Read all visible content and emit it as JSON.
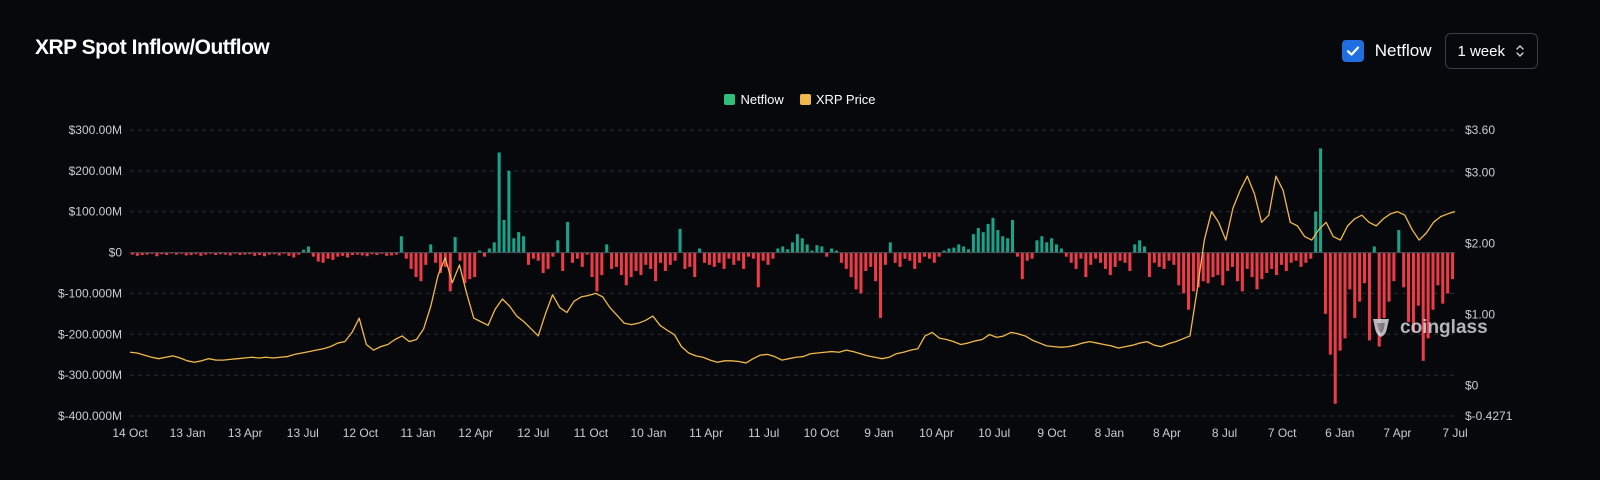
{
  "header": {
    "title": "XRP Spot Inflow/Outflow",
    "netflow_toggle": {
      "label": "Netflow",
      "checked": true
    },
    "period_select": {
      "value": "1 week"
    }
  },
  "watermark": "coinglass",
  "colors": {
    "netflow_positive": "#16a58a",
    "netflow_negative": "#ee3b48",
    "price_line": "#f0b84a",
    "legend_netflow": "#2fbf7a",
    "legend_price": "#f0b84a",
    "checkbox": "#1f6fe0",
    "grid": "#2a2d35"
  },
  "chart_data": {
    "type": "bar",
    "title": "XRP Spot Inflow/Outflow",
    "legend": [
      "Netflow",
      "XRP Price"
    ],
    "legend_position": "top-center",
    "grid": true,
    "x_tick_labels": [
      "14 Oct",
      "13 Jan",
      "13 Apr",
      "13 Jul",
      "12 Oct",
      "11 Jan",
      "12 Apr",
      "12 Jul",
      "11 Oct",
      "10 Jan",
      "11 Apr",
      "11 Jul",
      "10 Oct",
      "9 Jan",
      "10 Apr",
      "10 Jul",
      "9 Oct",
      "8 Jan",
      "8 Apr",
      "8 Jul",
      "7 Oct",
      "6 Jan",
      "7 Apr",
      "7 Jul"
    ],
    "left_axis": {
      "tick_labels": [
        "$300.00M",
        "$200.00M",
        "$100.00M",
        "$0",
        "$-100.000M",
        "$-200.000M",
        "$-300.000M",
        "$-400.000M"
      ],
      "ylim": [
        -400,
        300
      ],
      "unit": "USD millions"
    },
    "right_axis": {
      "tick_labels": [
        "$3.60",
        "$3.00",
        "$2.00",
        "$1.00",
        "$0",
        "$-0.4271"
      ],
      "ylim": [
        -0.4271,
        3.6
      ],
      "unit": "USD"
    },
    "series": [
      {
        "name": "Netflow",
        "type": "bar",
        "axis": "left",
        "values": [
          -5,
          -8,
          -6,
          -5,
          -3,
          -9,
          -4,
          -6,
          -2,
          -5,
          -3,
          -7,
          -6,
          -4,
          -8,
          -5,
          -3,
          -6,
          -4,
          -5,
          -7,
          -3,
          -6,
          -5,
          -4,
          -8,
          -6,
          -9,
          -5,
          -4,
          -7,
          -3,
          -8,
          -12,
          -5,
          7,
          15,
          -10,
          -22,
          -25,
          -15,
          -18,
          -10,
          -8,
          -12,
          -6,
          -5,
          -7,
          -9,
          -4,
          -6,
          -3,
          -8,
          -7,
          -5,
          40,
          -15,
          -40,
          -60,
          -70,
          -30,
          20,
          -25,
          -50,
          -35,
          -95,
          38,
          -20,
          -75,
          -65,
          -60,
          5,
          -10,
          10,
          25,
          245,
          80,
          200,
          35,
          50,
          40,
          -30,
          -15,
          -20,
          -50,
          -40,
          -10,
          30,
          -45,
          75,
          -25,
          -15,
          -35,
          -5,
          -60,
          -95,
          -55,
          20,
          -40,
          -35,
          -55,
          -80,
          -60,
          -45,
          -55,
          -30,
          -40,
          -70,
          -25,
          -45,
          -30,
          -20,
          58,
          -40,
          -35,
          -60,
          10,
          -25,
          -30,
          -35,
          -25,
          -40,
          -15,
          -30,
          -20,
          -40,
          -10,
          -15,
          -85,
          -20,
          -30,
          -15,
          10,
          15,
          8,
          25,
          45,
          35,
          20,
          5,
          18,
          15,
          -10,
          10,
          5,
          -25,
          -40,
          -60,
          -90,
          -100,
          -45,
          -35,
          -70,
          -160,
          -30,
          25,
          -25,
          -35,
          -15,
          -20,
          -40,
          -25,
          -10,
          -15,
          -25,
          -10,
          5,
          10,
          12,
          20,
          15,
          8,
          45,
          60,
          50,
          70,
          85,
          55,
          40,
          35,
          80,
          -10,
          -65,
          -20,
          -15,
          30,
          40,
          25,
          35,
          20,
          10,
          -10,
          -25,
          -40,
          -15,
          -60,
          -30,
          -15,
          -25,
          -40,
          -55,
          -35,
          -20,
          -25,
          -45,
          20,
          30,
          15,
          -60,
          -25,
          -35,
          -40,
          -20,
          -30,
          -80,
          -100,
          -140,
          -95,
          -85,
          -70,
          -75,
          -60,
          -55,
          -80,
          -45,
          -35,
          -70,
          -95,
          -40,
          -60,
          -90,
          -65,
          -50,
          -40,
          -55,
          -30,
          -45,
          -25,
          -20,
          -35,
          -25,
          -15,
          100,
          255,
          -150,
          -250,
          -370,
          -240,
          -210,
          -90,
          -160,
          -120,
          -75,
          -215,
          15,
          -230,
          -160,
          -120,
          -70,
          55,
          -85,
          -170,
          -195,
          -130,
          -265,
          -210,
          -140,
          -80,
          -125,
          -100,
          -65
        ]
      },
      {
        "name": "XRP Price",
        "type": "line",
        "axis": "right",
        "values": [
          0.47,
          0.46,
          0.43,
          0.4,
          0.38,
          0.4,
          0.42,
          0.39,
          0.35,
          0.33,
          0.35,
          0.38,
          0.36,
          0.36,
          0.37,
          0.38,
          0.39,
          0.4,
          0.39,
          0.4,
          0.39,
          0.4,
          0.41,
          0.44,
          0.46,
          0.48,
          0.5,
          0.52,
          0.55,
          0.6,
          0.62,
          0.75,
          0.95,
          0.58,
          0.5,
          0.55,
          0.58,
          0.65,
          0.7,
          0.62,
          0.65,
          0.8,
          1.12,
          1.55,
          1.8,
          1.45,
          1.7,
          1.3,
          0.95,
          0.9,
          0.85,
          1.08,
          1.22,
          1.12,
          0.98,
          0.9,
          0.8,
          0.7,
          1.01,
          1.28,
          1.1,
          1.03,
          1.19,
          1.25,
          1.27,
          1.3,
          1.25,
          1.1,
          0.99,
          0.88,
          0.86,
          0.88,
          0.92,
          0.98,
          0.85,
          0.78,
          0.72,
          0.55,
          0.46,
          0.42,
          0.4,
          0.36,
          0.33,
          0.35,
          0.35,
          0.34,
          0.32,
          0.38,
          0.43,
          0.44,
          0.41,
          0.36,
          0.38,
          0.4,
          0.41,
          0.45,
          0.46,
          0.47,
          0.48,
          0.47,
          0.5,
          0.48,
          0.45,
          0.42,
          0.4,
          0.38,
          0.4,
          0.45,
          0.47,
          0.5,
          0.52,
          0.7,
          0.75,
          0.67,
          0.65,
          0.62,
          0.58,
          0.6,
          0.63,
          0.65,
          0.72,
          0.68,
          0.7,
          0.75,
          0.73,
          0.7,
          0.64,
          0.6,
          0.56,
          0.55,
          0.54,
          0.55,
          0.57,
          0.6,
          0.62,
          0.6,
          0.58,
          0.56,
          0.53,
          0.55,
          0.57,
          0.6,
          0.62,
          0.57,
          0.55,
          0.59,
          0.62,
          0.66,
          0.7,
          1.35,
          2.05,
          2.45,
          2.3,
          2.05,
          2.5,
          2.75,
          2.95,
          2.7,
          2.3,
          2.4,
          2.95,
          2.75,
          2.3,
          2.25,
          2.1,
          2.05,
          2.2,
          2.3,
          2.1,
          2.05,
          2.25,
          2.35,
          2.4,
          2.3,
          2.25,
          2.35,
          2.42,
          2.45,
          2.4,
          2.2,
          2.05,
          2.15,
          2.3,
          2.38,
          2.42,
          2.45
        ]
      }
    ]
  }
}
